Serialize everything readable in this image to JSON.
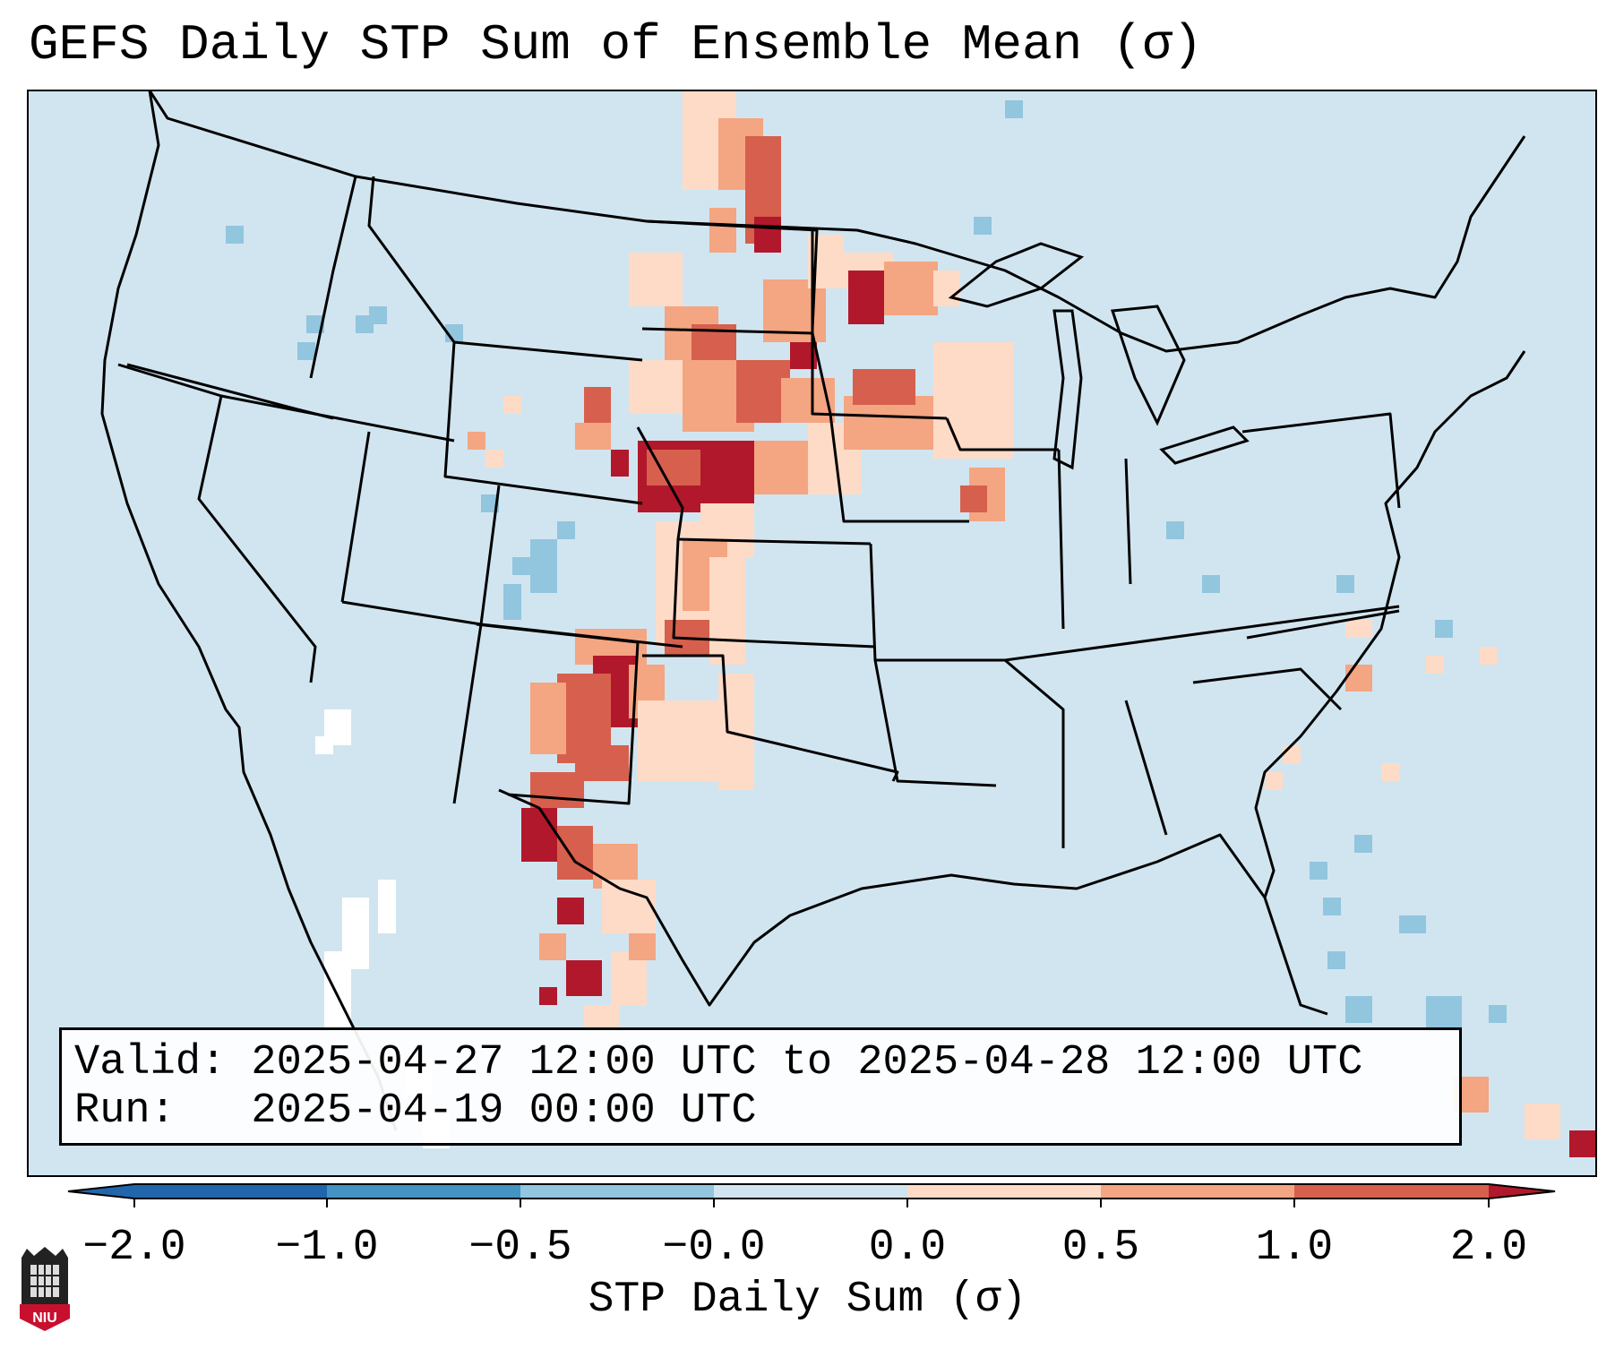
{
  "title": "GEFS Daily STP Sum of Ensemble Mean (σ)",
  "info": {
    "valid_line": "Valid: 2025-04-27 12:00 UTC to 2025-04-28 12:00 UTC",
    "run_line": "Run:   2025-04-19 00:00 UTC"
  },
  "colorbar": {
    "label": "STP Daily Sum (σ)",
    "ticks": [
      "−2.0",
      "−1.0",
      "−0.5",
      "−0.0",
      "0.0",
      "0.5",
      "1.0",
      "2.0"
    ],
    "colors": [
      "#4393c3",
      "#92c5de",
      "#d1e5f0",
      "#fddbc7",
      "#f4a582",
      "#d6604d"
    ],
    "under_color": "#2166ac",
    "over_color": "#b2182b"
  },
  "map": {
    "background_color": "#d1e5f0",
    "bin_colors": {
      "neg_mid": "#92c5de",
      "neutral": "#ffffff",
      "pos_low": "#fddbc7",
      "pos_mid": "#f4a582",
      "pos_high": "#d6604d",
      "pos_max": "#b2182b"
    }
  },
  "logo": {
    "text": "NIU",
    "color": "#c8102e"
  }
}
